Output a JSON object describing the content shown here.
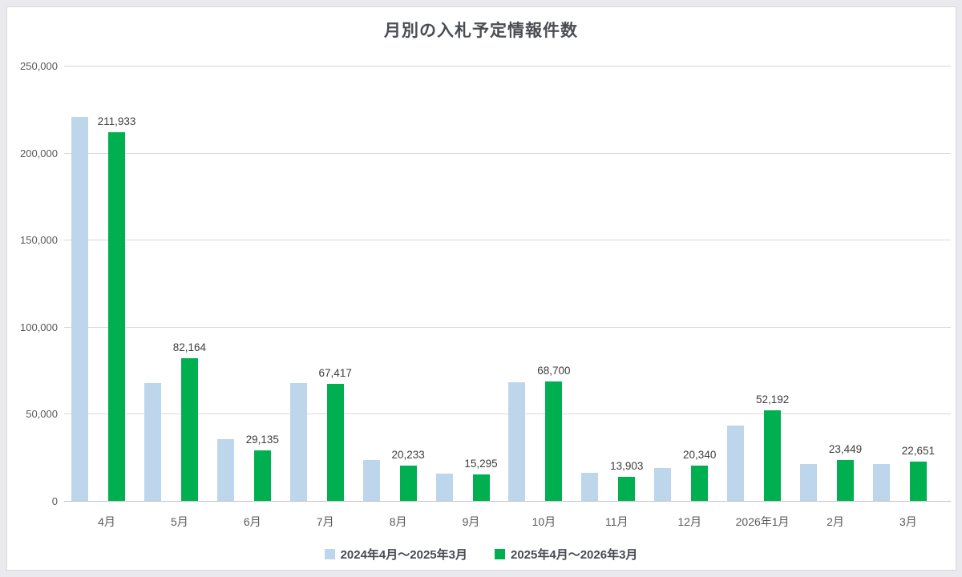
{
  "chart_data": {
    "type": "bar",
    "title": "月別の入札予定情報件数",
    "categories": [
      "4月",
      "5月",
      "6月",
      "7月",
      "8月",
      "9月",
      "10月",
      "11月",
      "12月",
      "2026年1月",
      "2月",
      "3月"
    ],
    "series": [
      {
        "name": "2024年4月〜2025年3月",
        "color": "#bdd6ec",
        "data_labels": false,
        "estimated": true,
        "values": [
          220400,
          67800,
          35400,
          67600,
          23500,
          15500,
          68100,
          16100,
          18700,
          43400,
          21100,
          21300
        ]
      },
      {
        "name": "2025年4月〜2026年3月",
        "color": "#00b050",
        "data_labels": true,
        "values": [
          211933,
          82164,
          29135,
          67417,
          20233,
          15295,
          68700,
          13903,
          20340,
          52192,
          23449,
          22651
        ]
      }
    ],
    "ylim": [
      0,
      250000
    ],
    "ytick_step": 50000,
    "yticks": [
      "0",
      "50,000",
      "100,000",
      "150,000",
      "200,000",
      "250,000"
    ],
    "xlabel": "",
    "ylabel": "",
    "grid": true,
    "legend_position": "bottom"
  }
}
